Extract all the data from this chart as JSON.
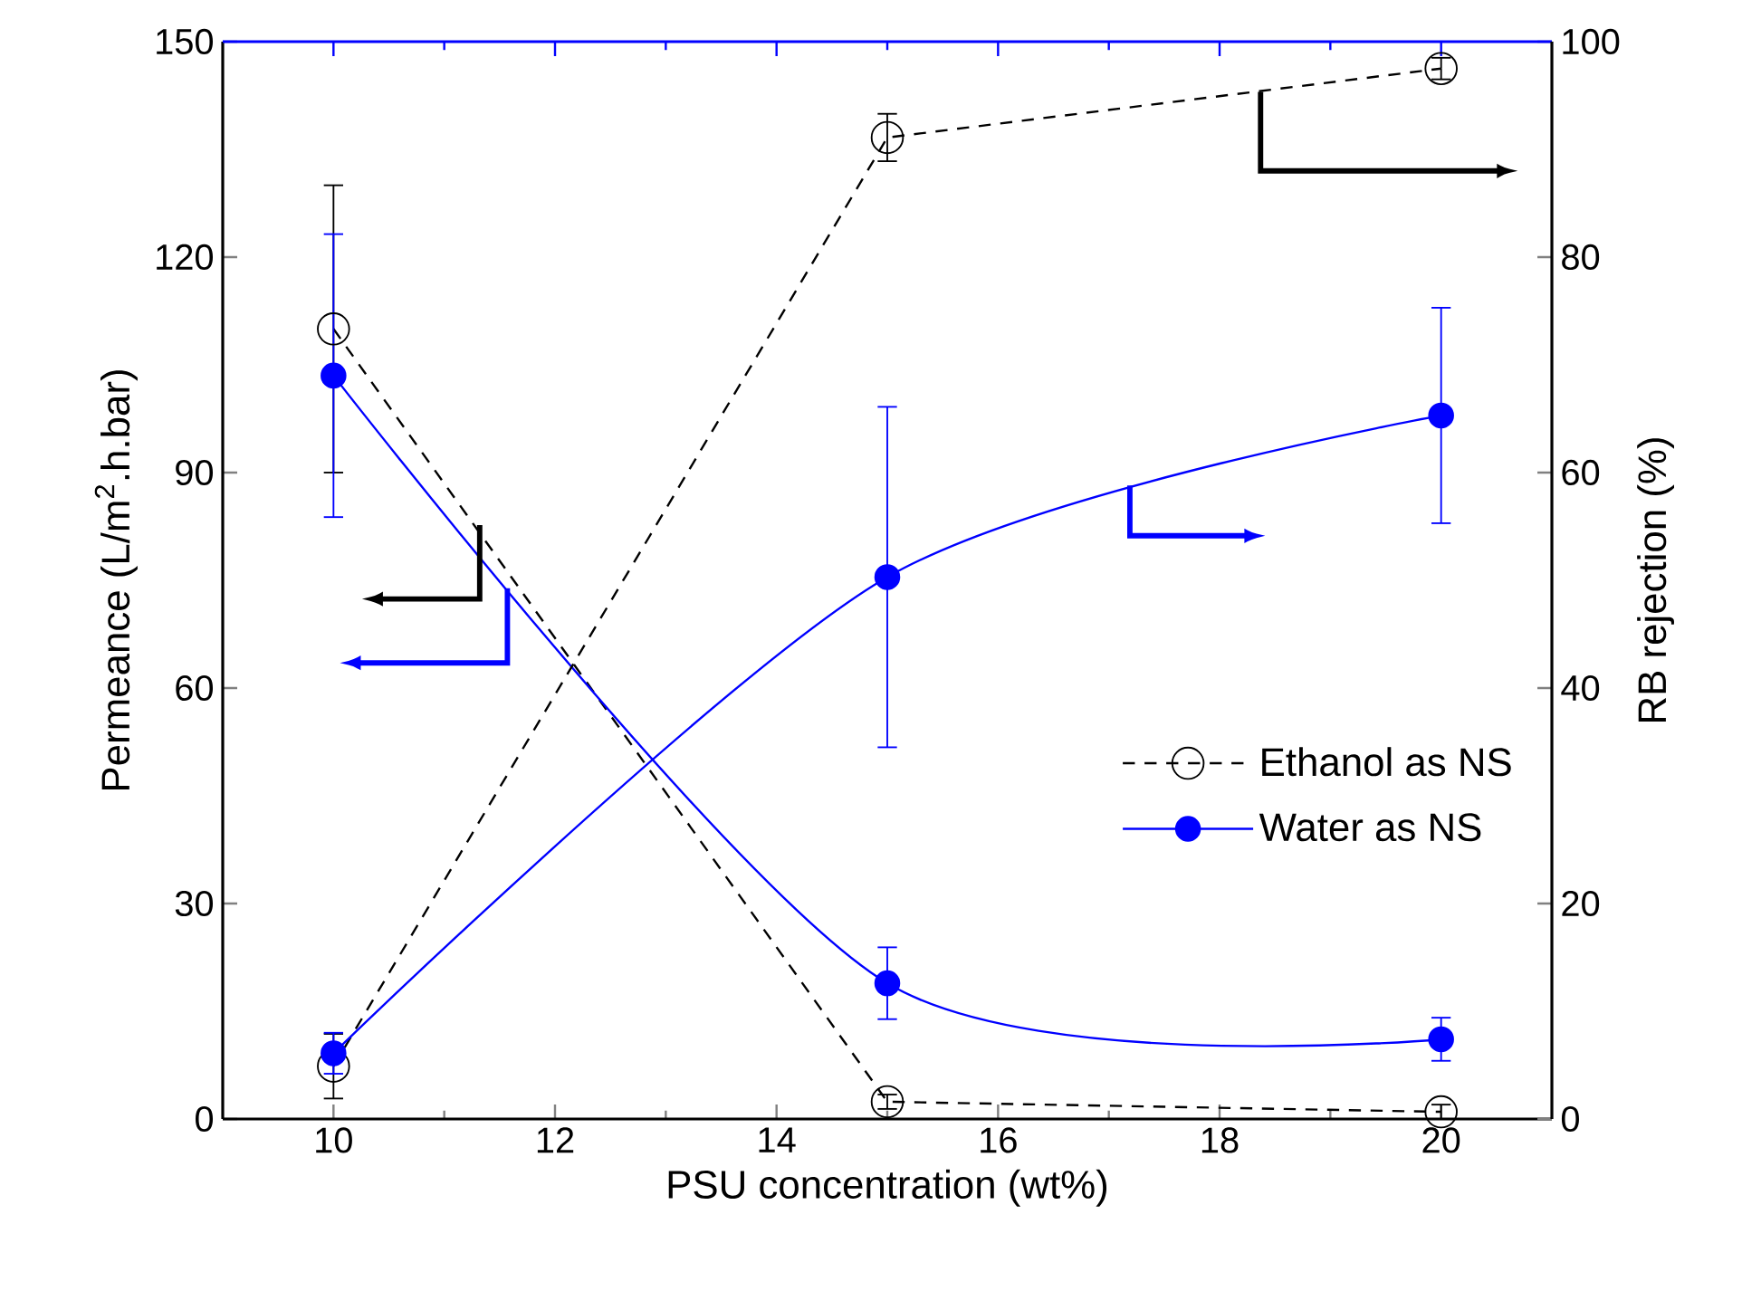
{
  "chart_data": {
    "type": "line",
    "xlabel": "PSU concentration (wt%)",
    "ylabel": "Permeance (L/m$^{2}$.h.bar)",
    "y2label": "RB rejection (%)",
    "xlim": [
      9,
      21
    ],
    "xticks": [
      10,
      12,
      14,
      16,
      18,
      20
    ],
    "ylim": [
      0,
      150
    ],
    "yticks": [
      0,
      30,
      60,
      90,
      120,
      150
    ],
    "y2lim": [
      0,
      100
    ],
    "y2ticks": [
      0,
      20,
      40,
      60,
      80,
      100
    ],
    "legend": "right",
    "marker": "circle",
    "series": [
      {
        "name": "Ethanol as NS",
        "color": "#000000",
        "line_style": "dashed",
        "x": [
          10,
          15,
          20
        ],
        "values": [
          110,
          2.4,
          1.0
        ],
        "errors": [
          20,
          1,
          1
        ]
      },
      {
        "name": "Water as NS",
        "color": "#0000ff",
        "line_style": "solid",
        "x": [
          10,
          15,
          20
        ],
        "values": [
          103.5,
          18.9,
          11.1
        ],
        "errors": [
          19.7,
          5,
          3
        ]
      },
      {
        "color": "#000000",
        "line_style": "dashed",
        "axis": "y2",
        "x": [
          10,
          15,
          20
        ],
        "values": [
          4.9,
          91.1,
          97.5
        ],
        "errors": [
          3,
          2.2,
          1
        ]
      },
      {
        "color": "#0000ff",
        "line_style": "solid",
        "axis": "y2",
        "x": [
          10,
          15,
          20
        ],
        "values": [
          6.1,
          50.3,
          65.3
        ],
        "errors": [
          1.9,
          15.8,
          10
        ]
      }
    ]
  }
}
